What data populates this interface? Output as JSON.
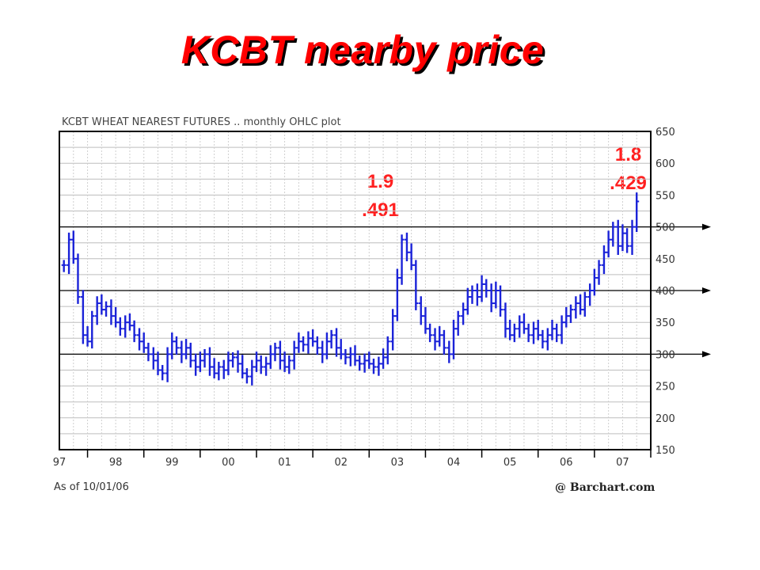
{
  "slide": {
    "title": "KCBT nearby price"
  },
  "chart_data": {
    "type": "ohlc",
    "title": "KCBT WHEAT NEAREST FUTURES .. monthly OHLC plot",
    "xlabel": "",
    "ylabel": "",
    "x_tick_labels": [
      "97",
      "98",
      "99",
      "00",
      "01",
      "02",
      "03",
      "04",
      "05",
      "06",
      "07"
    ],
    "y_ticks": [
      150,
      200,
      250,
      300,
      350,
      400,
      450,
      500,
      550,
      600,
      650
    ],
    "ylim": [
      150,
      650
    ],
    "xlim": [
      1996.5,
      2007.0
    ],
    "grid": true,
    "series_color": "#1a22d8",
    "reference_lines": [
      300,
      400,
      500
    ],
    "annotations": [
      {
        "lines": [
          "1.9",
          ".491"
        ],
        "x": 2002.2,
        "color": "#ff2020"
      },
      {
        "lines": [
          "1.8",
          ".429"
        ],
        "x": 2006.6,
        "color": "#ff2020"
      }
    ],
    "footer_left": "As of 10/01/06",
    "footer_right": "@ Barchart.com",
    "monthly_close": [
      [
        1996.58,
        440
      ],
      [
        1996.67,
        480
      ],
      [
        1996.75,
        450
      ],
      [
        1996.83,
        390
      ],
      [
        1996.92,
        330
      ],
      [
        1997.0,
        320
      ],
      [
        1997.08,
        360
      ],
      [
        1997.17,
        380
      ],
      [
        1997.25,
        370
      ],
      [
        1997.33,
        375
      ],
      [
        1997.42,
        360
      ],
      [
        1997.5,
        350
      ],
      [
        1997.58,
        340
      ],
      [
        1997.67,
        350
      ],
      [
        1997.75,
        345
      ],
      [
        1997.83,
        330
      ],
      [
        1997.92,
        320
      ],
      [
        1998.0,
        310
      ],
      [
        1998.08,
        300
      ],
      [
        1998.17,
        290
      ],
      [
        1998.25,
        275
      ],
      [
        1998.33,
        270
      ],
      [
        1998.42,
        300
      ],
      [
        1998.5,
        320
      ],
      [
        1998.58,
        310
      ],
      [
        1998.67,
        300
      ],
      [
        1998.75,
        310
      ],
      [
        1998.83,
        290
      ],
      [
        1998.92,
        280
      ],
      [
        1999.0,
        290
      ],
      [
        1999.08,
        300
      ],
      [
        1999.17,
        280
      ],
      [
        1999.25,
        270
      ],
      [
        1999.33,
        280
      ],
      [
        1999.42,
        275
      ],
      [
        1999.5,
        290
      ],
      [
        1999.58,
        295
      ],
      [
        1999.67,
        285
      ],
      [
        1999.75,
        270
      ],
      [
        1999.83,
        265
      ],
      [
        1999.92,
        280
      ],
      [
        2000.0,
        290
      ],
      [
        2000.08,
        280
      ],
      [
        2000.17,
        285
      ],
      [
        2000.25,
        300
      ],
      [
        2000.33,
        310
      ],
      [
        2000.42,
        290
      ],
      [
        2000.5,
        280
      ],
      [
        2000.58,
        290
      ],
      [
        2000.67,
        310
      ],
      [
        2000.75,
        320
      ],
      [
        2000.83,
        315
      ],
      [
        2000.92,
        325
      ],
      [
        2001.0,
        320
      ],
      [
        2001.08,
        310
      ],
      [
        2001.17,
        300
      ],
      [
        2001.25,
        320
      ],
      [
        2001.33,
        330
      ],
      [
        2001.42,
        310
      ],
      [
        2001.5,
        300
      ],
      [
        2001.58,
        295
      ],
      [
        2001.67,
        300
      ],
      [
        2001.75,
        290
      ],
      [
        2001.83,
        285
      ],
      [
        2001.92,
        290
      ],
      [
        2002.0,
        285
      ],
      [
        2002.08,
        280
      ],
      [
        2002.17,
        285
      ],
      [
        2002.25,
        295
      ],
      [
        2002.33,
        320
      ],
      [
        2002.42,
        360
      ],
      [
        2002.5,
        420
      ],
      [
        2002.58,
        480
      ],
      [
        2002.67,
        460
      ],
      [
        2002.75,
        440
      ],
      [
        2002.83,
        380
      ],
      [
        2002.92,
        360
      ],
      [
        2003.0,
        340
      ],
      [
        2003.08,
        330
      ],
      [
        2003.17,
        320
      ],
      [
        2003.25,
        330
      ],
      [
        2003.33,
        310
      ],
      [
        2003.42,
        300
      ],
      [
        2003.5,
        340
      ],
      [
        2003.58,
        360
      ],
      [
        2003.67,
        370
      ],
      [
        2003.75,
        390
      ],
      [
        2003.83,
        400
      ],
      [
        2003.92,
        390
      ],
      [
        2004.0,
        410
      ],
      [
        2004.08,
        400
      ],
      [
        2004.17,
        380
      ],
      [
        2004.25,
        400
      ],
      [
        2004.33,
        370
      ],
      [
        2004.42,
        340
      ],
      [
        2004.5,
        330
      ],
      [
        2004.58,
        340
      ],
      [
        2004.67,
        350
      ],
      [
        2004.75,
        340
      ],
      [
        2004.83,
        330
      ],
      [
        2004.92,
        340
      ],
      [
        2005.0,
        330
      ],
      [
        2005.08,
        320
      ],
      [
        2005.17,
        330
      ],
      [
        2005.25,
        340
      ],
      [
        2005.33,
        330
      ],
      [
        2005.42,
        350
      ],
      [
        2005.5,
        360
      ],
      [
        2005.58,
        370
      ],
      [
        2005.67,
        380
      ],
      [
        2005.75,
        370
      ],
      [
        2005.83,
        390
      ],
      [
        2005.92,
        400
      ],
      [
        2006.0,
        420
      ],
      [
        2006.08,
        440
      ],
      [
        2006.17,
        460
      ],
      [
        2006.25,
        480
      ],
      [
        2006.33,
        500
      ],
      [
        2006.42,
        470
      ],
      [
        2006.5,
        490
      ],
      [
        2006.58,
        470
      ],
      [
        2006.67,
        500
      ],
      [
        2006.75,
        540
      ]
    ]
  }
}
